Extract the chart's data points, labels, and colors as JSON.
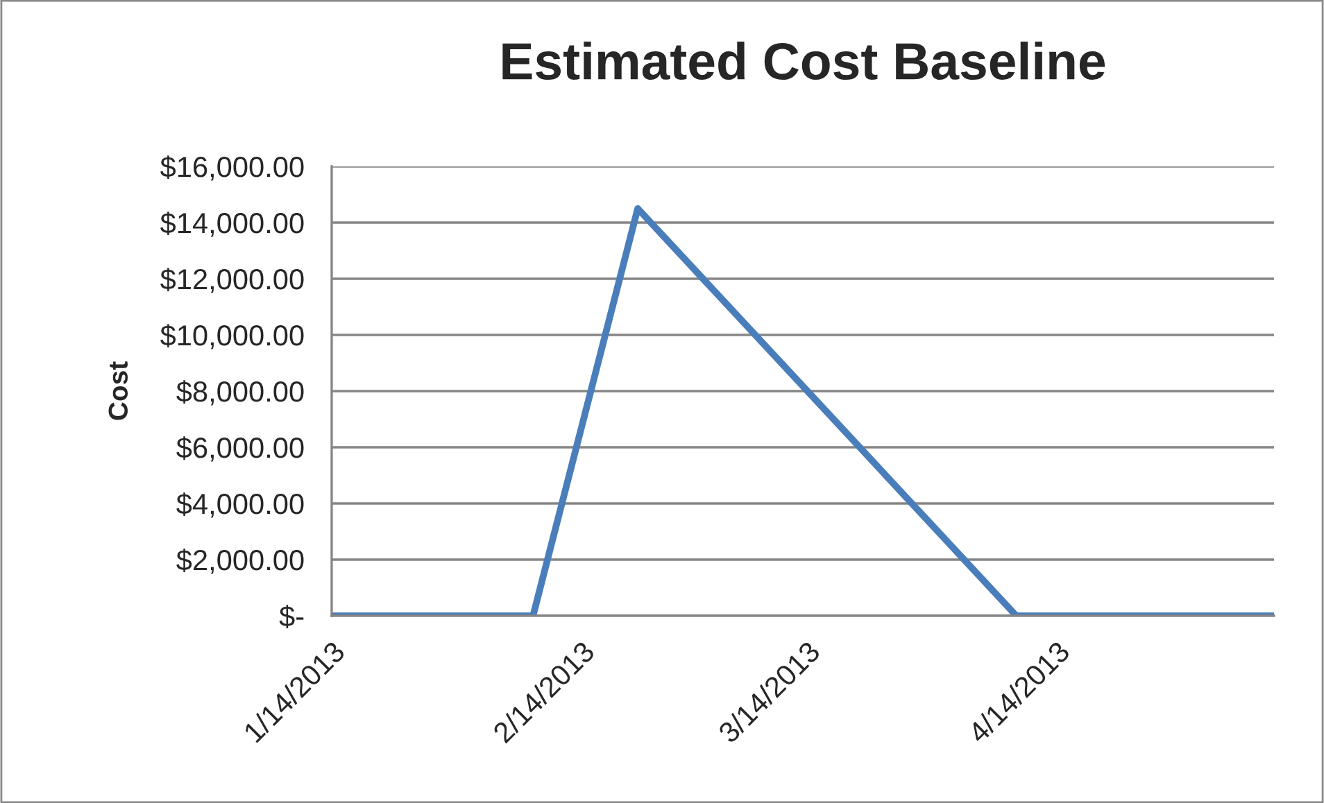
{
  "chart_data": {
    "type": "line",
    "title": "Estimated Cost Baseline",
    "ylabel": "Cost",
    "x": [
      "2013-01-14",
      "2013-02-08",
      "2013-02-21",
      "2013-04-09",
      "2013-05-11"
    ],
    "series": [
      {
        "color": "#4a7ebb",
        "values": [
          0,
          0,
          14500,
          0,
          0
        ]
      }
    ],
    "xlim": [
      "2013-01-14",
      "2013-05-11"
    ],
    "xticks": [
      {
        "value": "2013-01-14",
        "label": "1/14/2013"
      },
      {
        "value": "2013-02-14",
        "label": "2/14/2013"
      },
      {
        "value": "2013-03-14",
        "label": "3/14/2013"
      },
      {
        "value": "2013-04-14",
        "label": "4/14/2013"
      }
    ],
    "ylim": [
      0,
      16000
    ],
    "yticks": [
      {
        "value": 0,
        "label": "$-"
      },
      {
        "value": 2000,
        "label": "$2,000.00"
      },
      {
        "value": 4000,
        "label": "$4,000.00"
      },
      {
        "value": 6000,
        "label": "$6,000.00"
      },
      {
        "value": 8000,
        "label": "$8,000.00"
      },
      {
        "value": 10000,
        "label": "$10,000.00"
      },
      {
        "value": 12000,
        "label": "$12,000.00"
      },
      {
        "value": 14000,
        "label": "$14,000.00"
      },
      {
        "value": 16000,
        "label": "$16,000.00"
      }
    ],
    "grid": "y",
    "marker": "none",
    "line_style": "solid"
  }
}
